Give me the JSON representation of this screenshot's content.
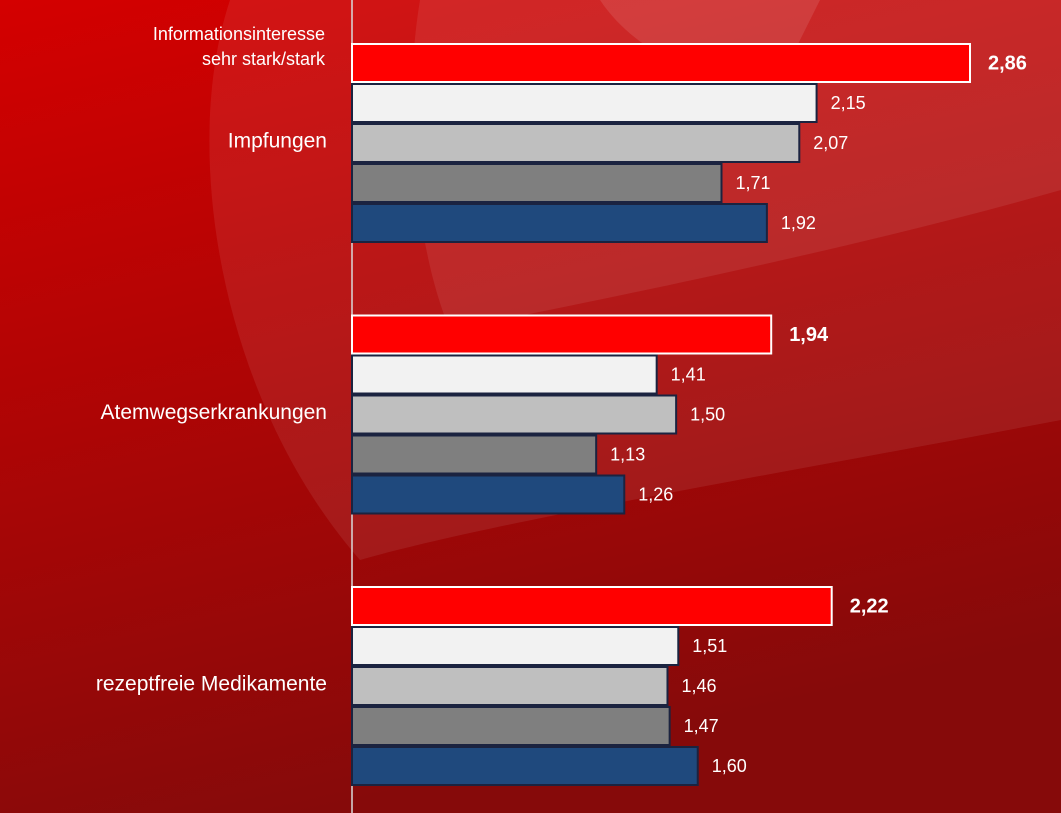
{
  "chart_data": {
    "type": "bar",
    "orientation": "horizontal",
    "axis_title": [
      "Informationsinteresse",
      "sehr stark/stark"
    ],
    "categories": [
      "Impfungen",
      "Atemwegserkrankungen",
      "rezeptfreie Medikamente"
    ],
    "series": [
      {
        "color": "#ff0000",
        "values": [
          2.86,
          1.94,
          2.22
        ],
        "value_labels": [
          "2,86",
          "1,94",
          "2,22"
        ]
      },
      {
        "color": "#f2f2f2",
        "values": [
          2.15,
          1.41,
          1.51
        ],
        "value_labels": [
          "2,15",
          "1,41",
          "1,51"
        ]
      },
      {
        "color": "#bfbfbf",
        "values": [
          2.07,
          1.5,
          1.46
        ],
        "value_labels": [
          "2,07",
          "1,50",
          "1,46"
        ]
      },
      {
        "color": "#7f7f7f",
        "values": [
          1.71,
          1.13,
          1.47
        ],
        "value_labels": [
          "1,71",
          "1,13",
          "1,47"
        ]
      },
      {
        "color": "#1f497d",
        "values": [
          1.92,
          1.26,
          1.6
        ],
        "value_labels": [
          "1,92",
          "1,26",
          "1,60"
        ]
      }
    ]
  }
}
